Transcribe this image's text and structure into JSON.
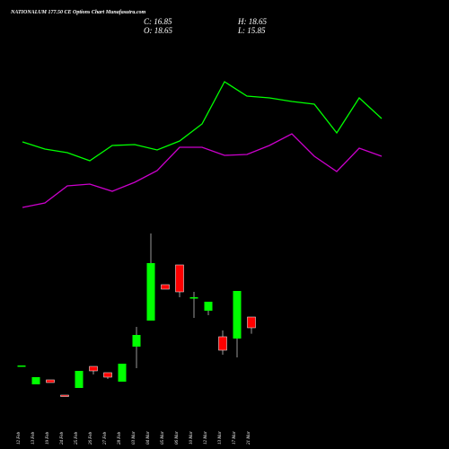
{
  "chart_data": [
    {
      "type": "candlestick",
      "title": "NATIONALUM 177.50 CE Options Chart Munafasutra.com",
      "ohlc_labels": [
        "C: 16.85",
        "H: 18.65",
        "O: 18.65",
        "L: 15.85"
      ],
      "categories": [
        "12 Feb",
        "13 Feb",
        "19 Feb",
        "24 Feb",
        "25 Feb",
        "26 Feb",
        "27 Feb",
        "28 Feb",
        "03 Mar",
        "04 Mar",
        "05 Mar",
        "06 Mar",
        "10 Mar",
        "12 Mar",
        "13 Mar",
        "17 Mar",
        "21 Mar"
      ],
      "open": [
        10.55,
        7.4,
        8.15,
        5.6,
        6.8,
        10.4,
        9.35,
        7.85,
        13.7,
        18.05,
        24.05,
        27.35,
        21.95,
        19.7,
        15.35,
        15.05,
        18.65
      ],
      "high": [
        10.55,
        8.6,
        8.15,
        5.6,
        9.65,
        10.4,
        9.35,
        10.85,
        17.0,
        32.6,
        24.05,
        27.35,
        22.85,
        21.2,
        16.4,
        23.0,
        18.65
      ],
      "low": [
        10.55,
        7.4,
        7.7,
        5.45,
        6.8,
        9.05,
        8.3,
        7.85,
        10.1,
        18.05,
        23.3,
        21.95,
        18.5,
        18.95,
        12.35,
        11.9,
        15.85
      ],
      "close": [
        10.55,
        8.6,
        7.7,
        5.45,
        9.65,
        9.65,
        8.6,
        10.85,
        15.65,
        27.65,
        23.3,
        22.85,
        21.95,
        21.2,
        13.1,
        23.0,
        16.85
      ],
      "up_color": "#00ff00",
      "down_color": "#ff0000",
      "ylim": [
        -3.4,
        71.6
      ]
    },
    {
      "type": "line",
      "series": [
        {
          "color": "#00ff00",
          "values": [
            92,
            84,
            80,
            71,
            88,
            89,
            83,
            93,
            112,
            159,
            143,
            141,
            137,
            134,
            102,
            141,
            118
          ]
        },
        {
          "color": "#cc00cc",
          "values": [
            19,
            24,
            43,
            45,
            37,
            47,
            60,
            86,
            86,
            77,
            78,
            88,
            101,
            76,
            59,
            85,
            76
          ]
        }
      ],
      "ylim": [
        0,
        250
      ]
    }
  ]
}
